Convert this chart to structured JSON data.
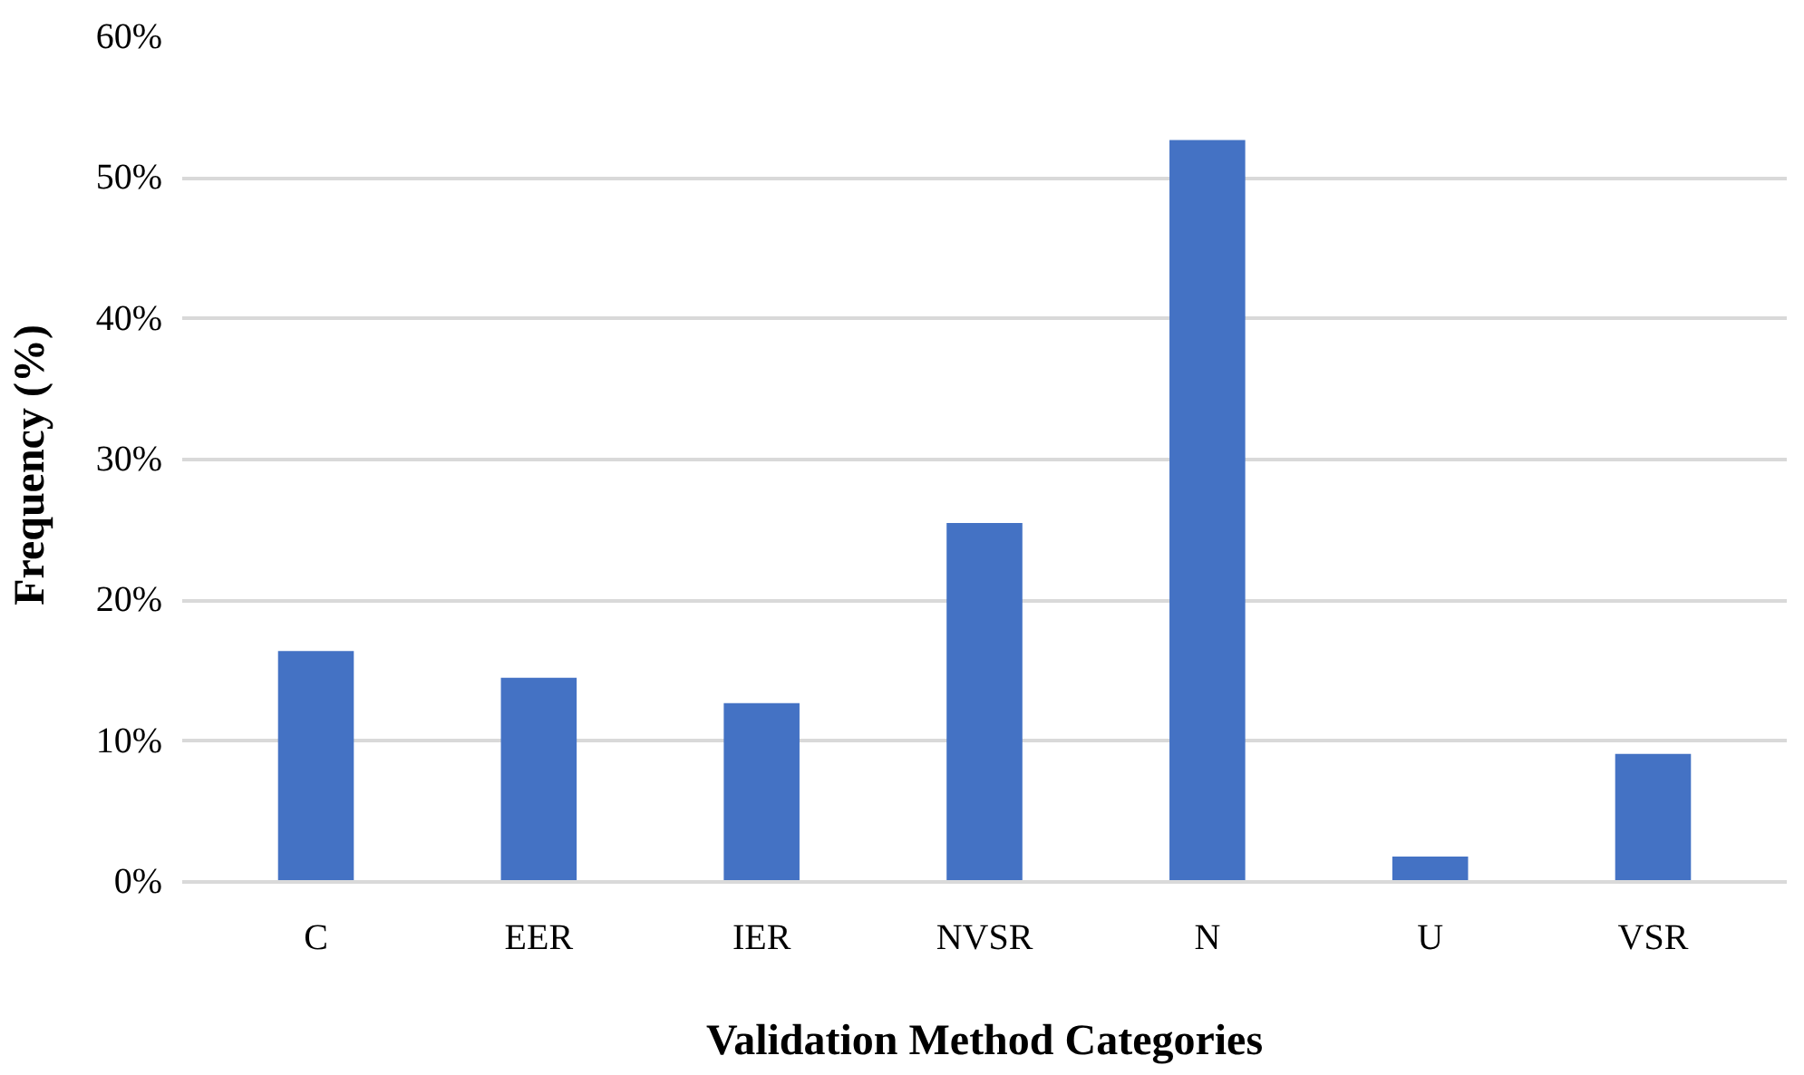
{
  "chart_data": {
    "type": "bar",
    "xlabel": "Validation Method Categories",
    "ylabel": "Frequency  (%)",
    "categories": [
      "C",
      "EER",
      "IER",
      "NVSR",
      "N",
      "U",
      "VSR"
    ],
    "values": [
      16.4,
      14.5,
      12.7,
      25.5,
      52.7,
      1.8,
      9.1
    ],
    "color": "#4472c4",
    "ylim": [
      0,
      60
    ],
    "yticks": [
      {
        "value": 0,
        "label": "0%"
      },
      {
        "value": 10,
        "label": "10%"
      },
      {
        "value": 20,
        "label": "20%"
      },
      {
        "value": 30,
        "label": "30%"
      },
      {
        "value": 40,
        "label": "40%"
      },
      {
        "value": 50,
        "label": "50%"
      },
      {
        "value": 60,
        "label": "60%"
      }
    ],
    "grid": "y"
  }
}
